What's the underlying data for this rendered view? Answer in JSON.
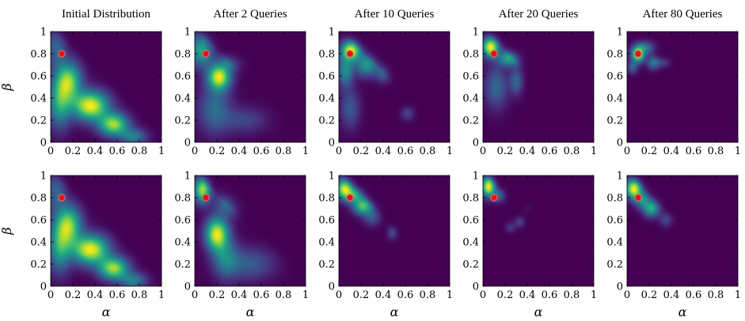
{
  "chart_data": {
    "type": "heatmap",
    "layout": "2 rows x 5 columns",
    "column_titles": [
      "Initial Distribution",
      "After 2 Queries",
      "After 10 Queries",
      "After 20 Queries",
      "After 80 Queries"
    ],
    "xlabel": "α",
    "ylabel": "β",
    "xlim": [
      0,
      1
    ],
    "ylim": [
      0,
      1
    ],
    "x_ticks": [
      "0",
      "0.2",
      "0.4",
      "0.6",
      "0.8",
      "1"
    ],
    "y_ticks": [
      "0",
      "0.2",
      "0.4",
      "0.6",
      "0.8",
      "1"
    ],
    "colormap": "viridis",
    "colors": {
      "background": "#440154",
      "marker_fill": "#d7191c",
      "marker_stroke": "#ff6b6b"
    },
    "true_parameter": {
      "alpha": 0.1,
      "beta": 0.8
    },
    "panels": [
      {
        "row": 1,
        "title": "Initial Distribution",
        "blobs": [
          {
            "cx": 0.36,
            "cy": 0.33,
            "sx": 0.11,
            "sy": 0.09,
            "w": 1.0
          },
          {
            "cx": 0.57,
            "cy": 0.16,
            "sx": 0.09,
            "sy": 0.07,
            "w": 0.85
          },
          {
            "cx": 0.16,
            "cy": 0.55,
            "sx": 0.08,
            "sy": 0.12,
            "w": 0.8
          },
          {
            "cx": 0.05,
            "cy": 0.85,
            "sx": 0.06,
            "sy": 0.12,
            "w": 0.3
          },
          {
            "cx": 0.08,
            "cy": 0.35,
            "sx": 0.07,
            "sy": 0.15,
            "w": 0.55
          },
          {
            "cx": 0.75,
            "cy": 0.05,
            "sx": 0.08,
            "sy": 0.05,
            "w": 0.4
          }
        ]
      },
      {
        "row": 1,
        "title": "After 2 Queries",
        "blobs": [
          {
            "cx": 0.22,
            "cy": 0.59,
            "sx": 0.07,
            "sy": 0.08,
            "w": 1.0
          },
          {
            "cx": 0.06,
            "cy": 0.83,
            "sx": 0.07,
            "sy": 0.1,
            "w": 0.6
          },
          {
            "cx": 0.35,
            "cy": 0.73,
            "sx": 0.08,
            "sy": 0.05,
            "w": 0.35
          },
          {
            "cx": 0.18,
            "cy": 0.3,
            "sx": 0.1,
            "sy": 0.15,
            "w": 0.35
          },
          {
            "cx": 0.45,
            "cy": 0.2,
            "sx": 0.14,
            "sy": 0.08,
            "w": 0.2
          }
        ]
      },
      {
        "row": 1,
        "title": "After 10 Queries",
        "blobs": [
          {
            "cx": 0.11,
            "cy": 0.83,
            "sx": 0.06,
            "sy": 0.06,
            "w": 1.0
          },
          {
            "cx": 0.25,
            "cy": 0.7,
            "sx": 0.07,
            "sy": 0.07,
            "w": 0.55
          },
          {
            "cx": 0.06,
            "cy": 0.65,
            "sx": 0.05,
            "sy": 0.1,
            "w": 0.5
          },
          {
            "cx": 0.4,
            "cy": 0.63,
            "sx": 0.05,
            "sy": 0.06,
            "w": 0.3
          },
          {
            "cx": 0.1,
            "cy": 0.3,
            "sx": 0.06,
            "sy": 0.12,
            "w": 0.28
          },
          {
            "cx": 0.62,
            "cy": 0.26,
            "sx": 0.04,
            "sy": 0.04,
            "w": 0.2
          }
        ]
      },
      {
        "row": 1,
        "title": "After 20 Queries",
        "blobs": [
          {
            "cx": 0.07,
            "cy": 0.86,
            "sx": 0.05,
            "sy": 0.06,
            "w": 0.95
          },
          {
            "cx": 0.24,
            "cy": 0.76,
            "sx": 0.07,
            "sy": 0.05,
            "w": 0.55
          },
          {
            "cx": 0.3,
            "cy": 0.55,
            "sx": 0.04,
            "sy": 0.08,
            "w": 0.3
          },
          {
            "cx": 0.12,
            "cy": 0.5,
            "sx": 0.07,
            "sy": 0.13,
            "w": 0.3
          }
        ]
      },
      {
        "row": 1,
        "title": "After 80 Queries",
        "blobs": [
          {
            "cx": 0.1,
            "cy": 0.8,
            "sx": 0.04,
            "sy": 0.05,
            "w": 1.0
          },
          {
            "cx": 0.2,
            "cy": 0.87,
            "sx": 0.05,
            "sy": 0.04,
            "w": 0.5
          },
          {
            "cx": 0.24,
            "cy": 0.72,
            "sx": 0.04,
            "sy": 0.04,
            "w": 0.4
          },
          {
            "cx": 0.35,
            "cy": 0.73,
            "sx": 0.04,
            "sy": 0.03,
            "w": 0.25
          },
          {
            "cx": 0.05,
            "cy": 0.68,
            "sx": 0.03,
            "sy": 0.04,
            "w": 0.3
          }
        ]
      },
      {
        "row": 2,
        "title": "Initial Distribution",
        "blobs": [
          {
            "cx": 0.36,
            "cy": 0.33,
            "sx": 0.11,
            "sy": 0.09,
            "w": 1.0
          },
          {
            "cx": 0.57,
            "cy": 0.16,
            "sx": 0.09,
            "sy": 0.07,
            "w": 0.85
          },
          {
            "cx": 0.16,
            "cy": 0.55,
            "sx": 0.08,
            "sy": 0.12,
            "w": 0.8
          },
          {
            "cx": 0.05,
            "cy": 0.85,
            "sx": 0.06,
            "sy": 0.12,
            "w": 0.3
          },
          {
            "cx": 0.08,
            "cy": 0.35,
            "sx": 0.07,
            "sy": 0.15,
            "w": 0.55
          },
          {
            "cx": 0.75,
            "cy": 0.05,
            "sx": 0.08,
            "sy": 0.05,
            "w": 0.4
          }
        ]
      },
      {
        "row": 2,
        "title": "After 2 Queries",
        "blobs": [
          {
            "cx": 0.2,
            "cy": 0.47,
            "sx": 0.07,
            "sy": 0.1,
            "w": 1.0
          },
          {
            "cx": 0.07,
            "cy": 0.87,
            "sx": 0.05,
            "sy": 0.08,
            "w": 0.9
          },
          {
            "cx": 0.3,
            "cy": 0.75,
            "sx": 0.08,
            "sy": 0.08,
            "w": 0.35
          },
          {
            "cx": 0.5,
            "cy": 0.2,
            "sx": 0.15,
            "sy": 0.1,
            "w": 0.28
          },
          {
            "cx": 0.28,
            "cy": 0.25,
            "sx": 0.08,
            "sy": 0.12,
            "w": 0.4
          }
        ]
      },
      {
        "row": 2,
        "title": "After 10 Queries",
        "blobs": [
          {
            "cx": 0.05,
            "cy": 0.88,
            "sx": 0.05,
            "sy": 0.06,
            "w": 0.9
          },
          {
            "cx": 0.22,
            "cy": 0.72,
            "sx": 0.06,
            "sy": 0.05,
            "w": 0.7
          },
          {
            "cx": 0.14,
            "cy": 0.82,
            "sx": 0.06,
            "sy": 0.05,
            "w": 0.55
          },
          {
            "cx": 0.3,
            "cy": 0.62,
            "sx": 0.05,
            "sy": 0.05,
            "w": 0.25
          },
          {
            "cx": 0.48,
            "cy": 0.48,
            "sx": 0.03,
            "sy": 0.04,
            "w": 0.2
          }
        ]
      },
      {
        "row": 2,
        "title": "After 20 Queries",
        "blobs": [
          {
            "cx": 0.05,
            "cy": 0.9,
            "sx": 0.04,
            "sy": 0.06,
            "w": 0.95
          },
          {
            "cx": 0.14,
            "cy": 0.82,
            "sx": 0.04,
            "sy": 0.04,
            "w": 0.3
          },
          {
            "cx": 0.33,
            "cy": 0.58,
            "sx": 0.03,
            "sy": 0.03,
            "w": 0.18
          },
          {
            "cx": 0.25,
            "cy": 0.53,
            "sx": 0.03,
            "sy": 0.03,
            "w": 0.15
          },
          {
            "cx": 0.42,
            "cy": 0.72,
            "sx": 0.03,
            "sy": 0.03,
            "w": 0.12
          }
        ]
      },
      {
        "row": 2,
        "title": "After 80 Queries",
        "blobs": [
          {
            "cx": 0.06,
            "cy": 0.88,
            "sx": 0.05,
            "sy": 0.06,
            "w": 1.0
          },
          {
            "cx": 0.22,
            "cy": 0.7,
            "sx": 0.05,
            "sy": 0.05,
            "w": 0.6
          },
          {
            "cx": 0.14,
            "cy": 0.78,
            "sx": 0.05,
            "sy": 0.05,
            "w": 0.45
          },
          {
            "cx": 0.35,
            "cy": 0.6,
            "sx": 0.04,
            "sy": 0.04,
            "w": 0.2
          }
        ]
      }
    ]
  }
}
